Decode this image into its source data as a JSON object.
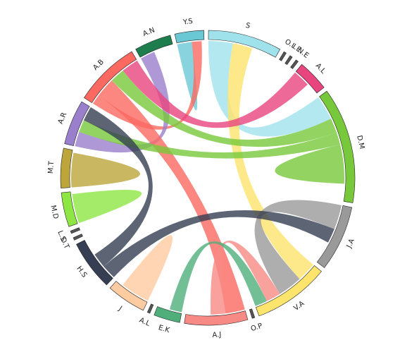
{
  "chart_data": {
    "type": "chord",
    "groups": [
      {
        "name": "S",
        "color": "#a0e2ec",
        "value": 28
      },
      {
        "name": "O.L",
        "color": "#555555",
        "value": 1
      },
      {
        "name": "I.E",
        "color": "#555555",
        "value": 1
      },
      {
        "name": "N.E",
        "color": "#555555",
        "value": 1
      },
      {
        "name": "A.L",
        "color": "#e8457e",
        "value": 12
      },
      {
        "name": "D.M",
        "color": "#77c83a",
        "value": 44
      },
      {
        "name": "J.A",
        "color": "#9a9a9a",
        "value": 25
      },
      {
        "name": "V.A",
        "color": "#fde46d",
        "value": 29
      },
      {
        "name": "O.P",
        "color": "#555555",
        "value": 1
      },
      {
        "name": "A.J",
        "color": "#f88a85",
        "value": 24
      },
      {
        "name": "E.K",
        "color": "#4fae7a",
        "value": 10
      },
      {
        "name": "A.L",
        "color": "#555555",
        "value": 1
      },
      {
        "name": "J",
        "color": "#ffcba0",
        "value": 15
      },
      {
        "name": "H.S",
        "color": "#353e52",
        "value": 19
      },
      {
        "name": "O.T",
        "color": "#555555",
        "value": 1
      },
      {
        "name": "L.S",
        "color": "#555555",
        "value": 1
      },
      {
        "name": "M.D",
        "color": "#8ee645",
        "value": 13
      },
      {
        "name": "M.T",
        "color": "#bda53a",
        "value": 15
      },
      {
        "name": "A.R",
        "color": "#9a7fcc",
        "value": 17
      },
      {
        "name": "A.B",
        "color": "#fb6961",
        "value": 25
      },
      {
        "name": "A.N",
        "color": "#1e7d4d",
        "value": 14
      },
      {
        "name": "Y.S",
        "color": "#6ac8d5",
        "value": 11
      }
    ],
    "chords": [
      {
        "source": 0,
        "target": 5,
        "value": 10
      },
      {
        "source": 7,
        "target": 0,
        "value": 8
      },
      {
        "source": 21,
        "target": 21,
        "value": 3
      },
      {
        "source": 19,
        "target": 21,
        "value": 4
      },
      {
        "source": 18,
        "target": 20,
        "value": 6
      },
      {
        "source": 19,
        "target": 9,
        "value": 8
      },
      {
        "source": 5,
        "target": 19,
        "value": 6
      },
      {
        "source": 5,
        "target": 18,
        "value": 5
      },
      {
        "source": 5,
        "target": 5,
        "value": 8
      },
      {
        "source": 4,
        "target": 19,
        "value": 7
      },
      {
        "source": 6,
        "target": 7,
        "value": 10
      },
      {
        "source": 13,
        "target": 6,
        "value": 6
      },
      {
        "source": 13,
        "target": 18,
        "value": 6
      },
      {
        "source": 17,
        "target": 17,
        "value": 7
      },
      {
        "source": 16,
        "target": 16,
        "value": 6
      },
      {
        "source": 9,
        "target": 7,
        "value": 6
      },
      {
        "source": 10,
        "target": 7,
        "value": 5
      },
      {
        "source": 12,
        "target": 12,
        "value": 6
      }
    ]
  }
}
